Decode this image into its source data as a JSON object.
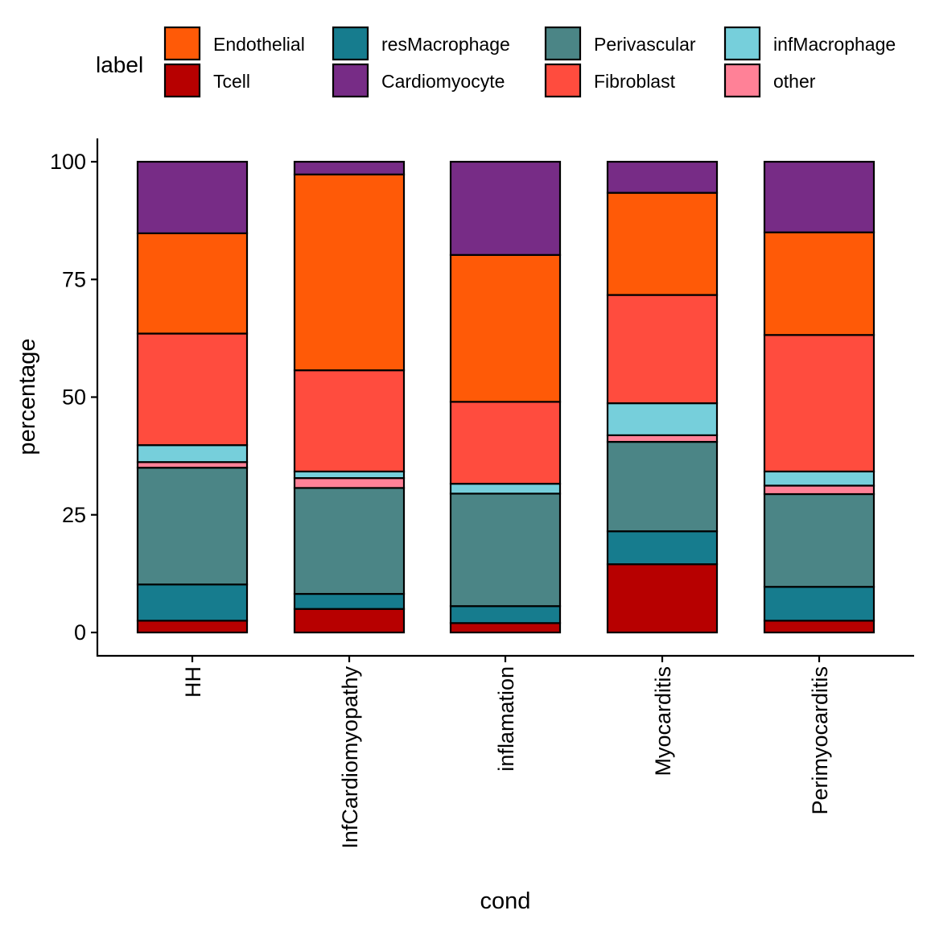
{
  "chart_data": {
    "type": "bar",
    "stacked": true,
    "xlabel": "cond",
    "ylabel": "percentage",
    "ylim": [
      0,
      100
    ],
    "yticks": [
      0,
      25,
      50,
      75,
      100
    ],
    "grid": false,
    "legend": {
      "title": "label",
      "placement": "top"
    },
    "categories": [
      "HH",
      "InfCardiomyopathy",
      "inflamation",
      "Myocarditis",
      "Perimyocarditis"
    ],
    "series": [
      {
        "name": "Tcell",
        "color": "#B70000",
        "values": [
          2.5,
          5.0,
          2.0,
          14.5,
          2.5
        ]
      },
      {
        "name": "resMacrophage",
        "color": "#167C8E",
        "values": [
          7.7,
          3.2,
          3.6,
          7.0,
          7.2
        ]
      },
      {
        "name": "Perivascular",
        "color": "#4B8586",
        "values": [
          24.8,
          22.5,
          23.9,
          19.0,
          19.7
        ]
      },
      {
        "name": "other",
        "color": "#FF8197",
        "values": [
          1.2,
          2.1,
          0.0,
          1.4,
          1.8
        ]
      },
      {
        "name": "infMacrophage",
        "color": "#76CFDB",
        "values": [
          3.6,
          1.4,
          2.1,
          6.8,
          3.0
        ]
      },
      {
        "name": "Fibroblast",
        "color": "#FF4C3E",
        "values": [
          23.7,
          21.5,
          17.4,
          23.0,
          29.0
        ]
      },
      {
        "name": "Endothelial",
        "color": "#FF5A07",
        "values": [
          21.3,
          41.6,
          31.2,
          21.7,
          21.8
        ]
      },
      {
        "name": "Cardiomyocyte",
        "color": "#772C86",
        "values": [
          15.2,
          2.7,
          19.8,
          6.6,
          15.0
        ]
      }
    ],
    "legend_order": [
      [
        "Endothelial",
        "Tcell"
      ],
      [
        "resMacrophage",
        "Cardiomyocyte"
      ],
      [
        "Perivascular",
        "Fibroblast"
      ],
      [
        "infMacrophage",
        "other"
      ]
    ]
  }
}
